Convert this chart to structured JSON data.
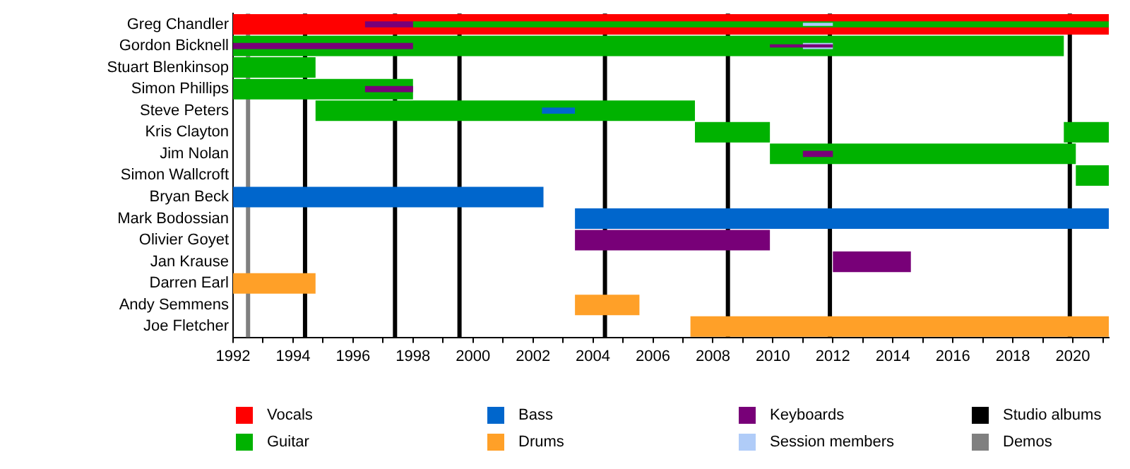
{
  "chart_data": {
    "type": "bar",
    "orientation": "horizontal",
    "categories": [
      "Greg Chandler",
      "Gordon Bicknell",
      "Stuart Blenkinsop",
      "Simon Phillips",
      "Steve Peters",
      "Kris Clayton",
      "Jim Nolan",
      "Simon Wallcroft",
      "Bryan Beck",
      "Mark Bodossian",
      "Olivier Goyet",
      "Jan Krause",
      "Darren Earl",
      "Andy Semmens",
      "Joe Fletcher"
    ],
    "series": [
      {
        "name": "Vocals",
        "color": "#ff0000",
        "base": [
          1992,
          null,
          null,
          null,
          null,
          null,
          null,
          null,
          null,
          null,
          null,
          null,
          null,
          null,
          null
        ],
        "values": [
          29.2,
          null,
          null,
          null,
          null,
          null,
          null,
          null,
          null,
          null,
          null,
          null,
          null,
          null,
          null
        ]
      },
      {
        "name": "Guitar",
        "color": "#00b200",
        "base": [
          1998,
          1992,
          1992,
          1992,
          1994.75,
          2007.4,
          2009.9,
          2020.1,
          null,
          null,
          null,
          null,
          null,
          null,
          null
        ],
        "values": [
          23.2,
          27.7,
          2.75,
          6,
          12.65,
          2.5,
          10.2,
          1.1,
          null,
          null,
          null,
          null,
          null,
          null,
          null
        ]
      },
      {
        "name": "Bass",
        "color": "#0066cc",
        "base": [
          null,
          null,
          null,
          null,
          2002.3,
          null,
          null,
          null,
          1992,
          2003.4,
          null,
          null,
          null,
          null,
          null
        ],
        "values": [
          null,
          null,
          null,
          null,
          1.1,
          null,
          null,
          null,
          10.35,
          17.8,
          null,
          null,
          null,
          null,
          null
        ]
      },
      {
        "name": "Drums",
        "color": "#ffa028",
        "base": [
          null,
          null,
          null,
          null,
          null,
          null,
          null,
          null,
          null,
          null,
          null,
          null,
          1992,
          2003.4,
          2007.25
        ],
        "values": [
          null,
          null,
          null,
          null,
          null,
          null,
          null,
          null,
          null,
          null,
          null,
          null,
          2.75,
          2.15,
          13.95
        ]
      },
      {
        "name": "Keyboards",
        "color": "#780078",
        "base": [
          1996.4,
          1992,
          null,
          1996.4,
          null,
          null,
          2011,
          null,
          null,
          null,
          2003.4,
          2012,
          null,
          null,
          null
        ],
        "values": [
          1.6,
          6,
          null,
          1.6,
          null,
          null,
          1,
          null,
          null,
          null,
          6.5,
          2.6,
          null,
          null,
          null
        ]
      },
      {
        "name": "Session members",
        "color": "#b0ccf8",
        "base": [
          2011,
          2011,
          null,
          null,
          null,
          null,
          null,
          null,
          null,
          null,
          null,
          null,
          null,
          null,
          null
        ],
        "values": [
          1,
          1,
          null,
          null,
          null,
          null,
          null,
          null,
          null,
          null,
          null,
          null,
          null,
          null,
          null
        ]
      },
      {
        "color": "#00b200",
        "base": [
          null,
          null,
          null,
          null,
          null,
          2019.7,
          null,
          null,
          null,
          null,
          null,
          null,
          null,
          null,
          null
        ],
        "values": [
          null,
          null,
          null,
          null,
          null,
          1.5,
          null,
          null,
          null,
          null,
          null,
          null,
          null,
          null,
          null
        ]
      },
      {
        "color": "#780078",
        "base": [
          null,
          2009.9,
          null,
          null,
          null,
          null,
          null,
          null,
          null,
          null,
          null,
          null,
          null,
          null,
          null
        ],
        "values": [
          null,
          2.1,
          null,
          null,
          null,
          null,
          null,
          null,
          null,
          null,
          null,
          null,
          null,
          null,
          null
        ]
      }
    ],
    "xlim": [
      1992,
      2021.2
    ],
    "xticks": [
      1992,
      {
        "value": 1993,
        "label": null
      },
      1994,
      {
        "value": 1995,
        "label": null
      },
      1996,
      {
        "value": 1997,
        "label": null
      },
      1998,
      {
        "value": 1999,
        "label": null
      },
      2000,
      {
        "value": 2001,
        "label": null
      },
      2002,
      {
        "value": 2003,
        "label": null
      },
      2004,
      {
        "value": 2005,
        "label": null
      },
      2006,
      {
        "value": 2007,
        "label": null
      },
      2008,
      {
        "value": 2009,
        "label": null
      },
      2010,
      {
        "value": 2011,
        "label": null
      },
      2012,
      {
        "value": 2013,
        "label": null
      },
      2014,
      {
        "value": 2015,
        "label": null
      },
      2016,
      {
        "value": 2017,
        "label": null
      },
      2018,
      {
        "value": 2019,
        "label": null
      },
      2020,
      {
        "value": 2021,
        "label": null
      }
    ],
    "ref_lines": [
      {
        "axis": "x",
        "value": 1994.4,
        "label": "Studio albums",
        "color": "#000000"
      },
      {
        "axis": "x",
        "value": 1997.4,
        "color": "#000000"
      },
      {
        "axis": "x",
        "value": 1999.55,
        "color": "#000000"
      },
      {
        "axis": "x",
        "value": 2004.4,
        "color": "#000000"
      },
      {
        "axis": "x",
        "value": 2008.5,
        "color": "#000000"
      },
      {
        "axis": "x",
        "value": 2011.9,
        "color": "#000000"
      },
      {
        "axis": "x",
        "value": 2019.9,
        "color": "#000000"
      },
      {
        "axis": "x",
        "value": 1992.5,
        "label": "Demos",
        "color": "#808080"
      }
    ],
    "grid": false,
    "legend": "bottom"
  }
}
